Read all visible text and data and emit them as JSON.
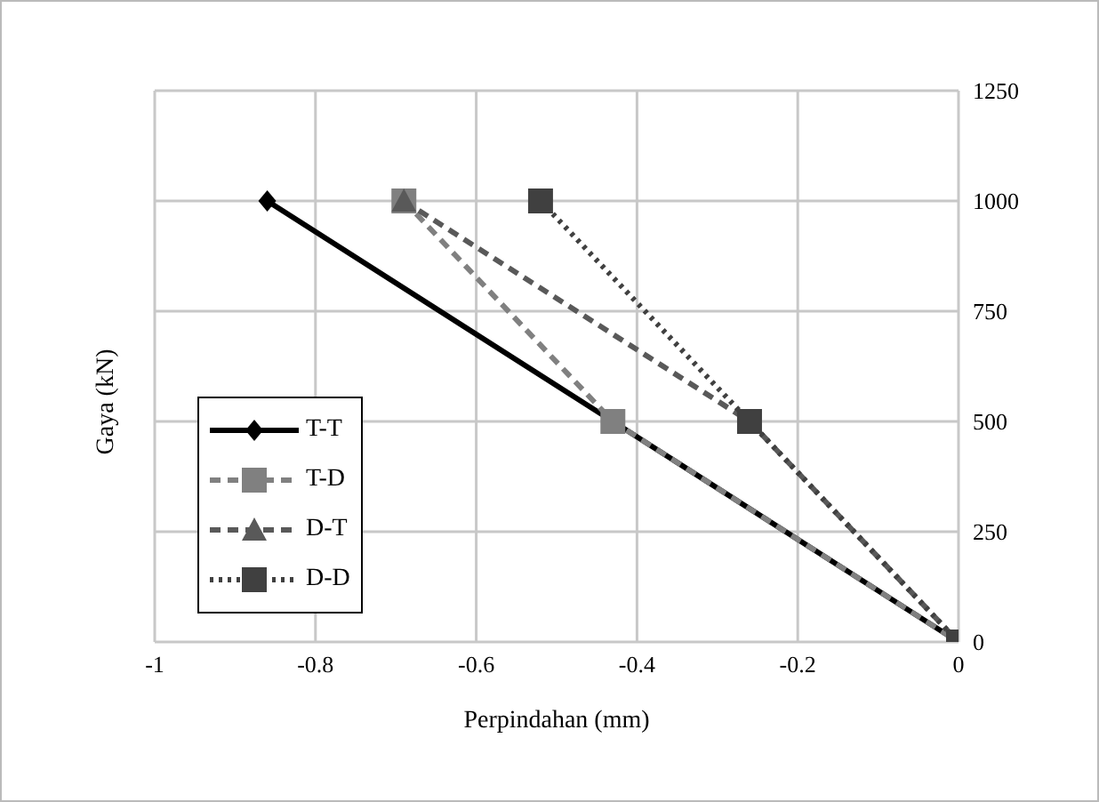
{
  "chart_data": {
    "type": "line",
    "xlabel": "Perpindahan (mm)",
    "ylabel": "Gaya (kN)",
    "xlim": [
      -1,
      0
    ],
    "xticks": [
      -1,
      -0.8,
      -0.6,
      -0.4,
      -0.2,
      0
    ],
    "ylim": [
      0,
      1250
    ],
    "yticks": [
      0,
      250,
      500,
      750,
      1000,
      1250
    ],
    "grid": true,
    "legend": "left",
    "series": [
      {
        "name": "T-T",
        "color": "#000000",
        "x": [
          -0.86,
          -0.43,
          0
        ],
        "values": [
          1000,
          500,
          0
        ],
        "marker": "diamond",
        "line_style": "solid"
      },
      {
        "name": "T-D",
        "color": "#808080",
        "x": [
          -0.69,
          -0.43,
          0
        ],
        "values": [
          1000,
          500,
          0
        ],
        "marker": "square",
        "line_style": "dashed"
      },
      {
        "name": "D-T",
        "color": "#595959",
        "x": [
          -0.69,
          -0.26,
          0
        ],
        "values": [
          1000,
          500,
          0
        ],
        "marker": "triangle",
        "line_style": "dashed"
      },
      {
        "name": "D-D",
        "color": "#404040",
        "x": [
          -0.52,
          -0.26,
          0
        ],
        "values": [
          1000,
          500,
          0
        ],
        "marker": "square",
        "line_style": "dotted"
      }
    ]
  }
}
